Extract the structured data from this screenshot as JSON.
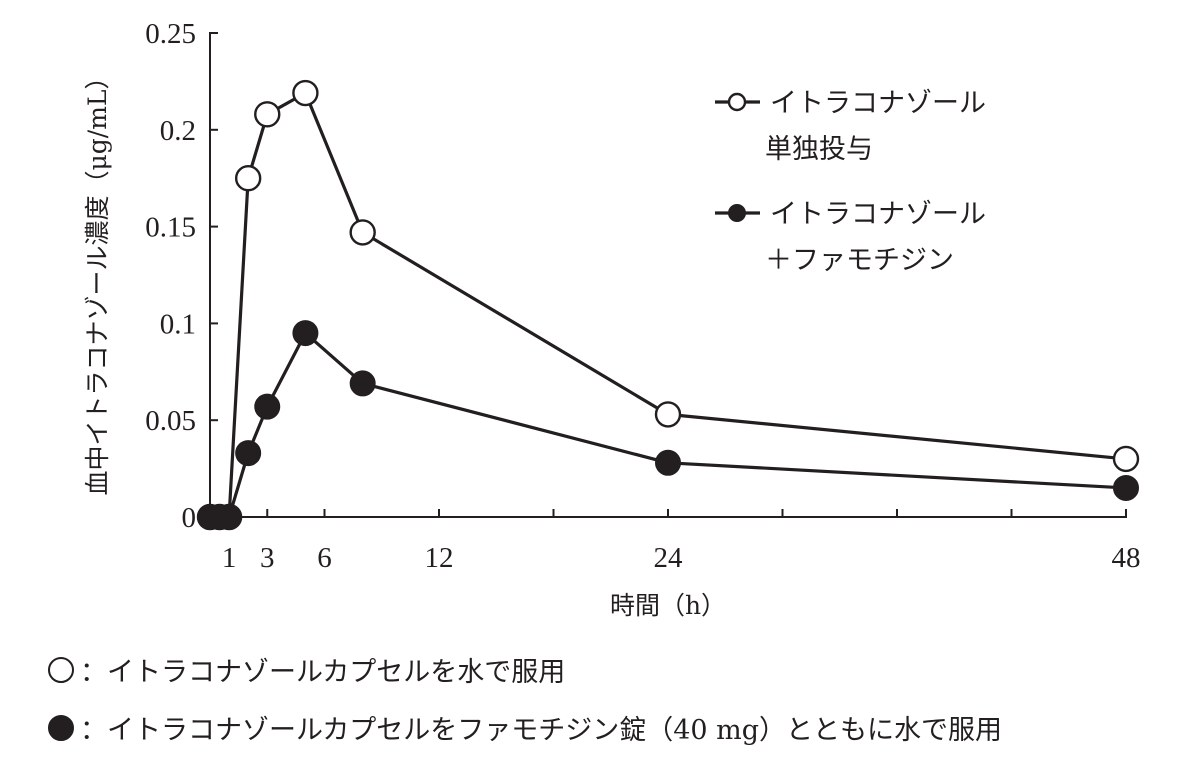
{
  "chart_data": {
    "type": "line",
    "title": "",
    "xlabel": "時間（h）",
    "ylabel": "血中イトラコナゾール濃度（μg/mL）",
    "xlim": [
      0,
      48
    ],
    "ylim": [
      0,
      0.25
    ],
    "x_tick_positions": [
      1,
      3,
      6,
      12,
      18,
      24,
      30,
      36,
      42,
      48
    ],
    "x_tick_labels": [
      "1",
      "3",
      "6",
      "12",
      "",
      "24",
      "",
      "",
      "",
      "48"
    ],
    "y_ticks": [
      0,
      0.05,
      0.1,
      0.15,
      0.2,
      0.25
    ],
    "y_tick_labels": [
      "0",
      "0.05",
      "0.1",
      "0.15",
      "0.2",
      "0.25"
    ],
    "grid": false,
    "legend_position": "upper right",
    "series": [
      {
        "name": "イトラコナゾール単独投与",
        "legend_lines": [
          "イトラコナゾール",
          "単独投与"
        ],
        "marker": "open-circle",
        "x": [
          0,
          0.5,
          1,
          2,
          3,
          5,
          8,
          24,
          48
        ],
        "values": [
          0,
          0,
          0,
          0.175,
          0.208,
          0.219,
          0.147,
          0.053,
          0.03
        ]
      },
      {
        "name": "イトラコナゾール＋ファモチジン",
        "legend_lines": [
          "イトラコナゾール",
          "＋ファモチジン"
        ],
        "marker": "filled-circle",
        "x": [
          0,
          0.5,
          1,
          2,
          3,
          5,
          8,
          24,
          48
        ],
        "values": [
          0,
          0,
          0,
          0.033,
          0.057,
          0.095,
          0.069,
          0.028,
          0.015
        ]
      }
    ]
  },
  "footnotes": [
    {
      "symbol": "open-circle",
      "text": "：イトラコナゾールカプセルを水で服用"
    },
    {
      "symbol": "filled-circle",
      "text": "：イトラコナゾールカプセルをファモチジン錠（40 mg）とともに水で服用"
    }
  ],
  "colors": {
    "ink": "#231f20",
    "background": "#ffffff"
  }
}
